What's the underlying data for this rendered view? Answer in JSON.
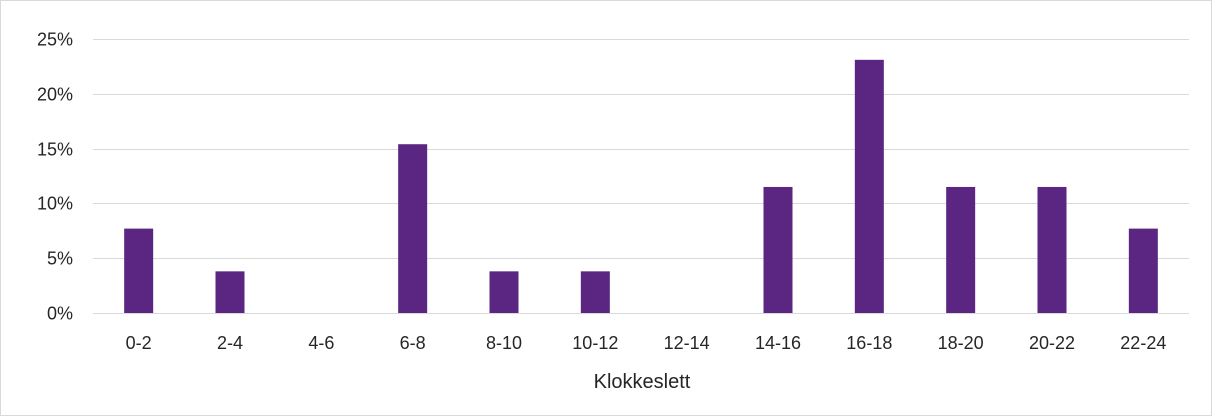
{
  "chart_data": {
    "type": "bar",
    "title": "",
    "xlabel": "Klokkeslett",
    "ylabel": "",
    "categories": [
      "0-2",
      "2-4",
      "4-6",
      "6-8",
      "8-10",
      "10-12",
      "12-14",
      "14-16",
      "16-18",
      "18-20",
      "20-22",
      "22-24"
    ],
    "series": [
      {
        "values": [
          7.7,
          3.8,
          0,
          15.4,
          3.8,
          3.8,
          0,
          11.5,
          23.1,
          11.5,
          11.5,
          7.7
        ]
      }
    ],
    "ylim": [
      0,
      25
    ],
    "yticks": [
      0,
      5,
      10,
      15,
      20,
      25
    ],
    "ytick_labels": [
      "0%",
      "5%",
      "10%",
      "15%",
      "20%",
      "25%"
    ],
    "grid": true,
    "legend": "none",
    "colors": {
      "bar": "#5b2681",
      "grid": "#d9d9d9",
      "text": "#262626"
    }
  }
}
